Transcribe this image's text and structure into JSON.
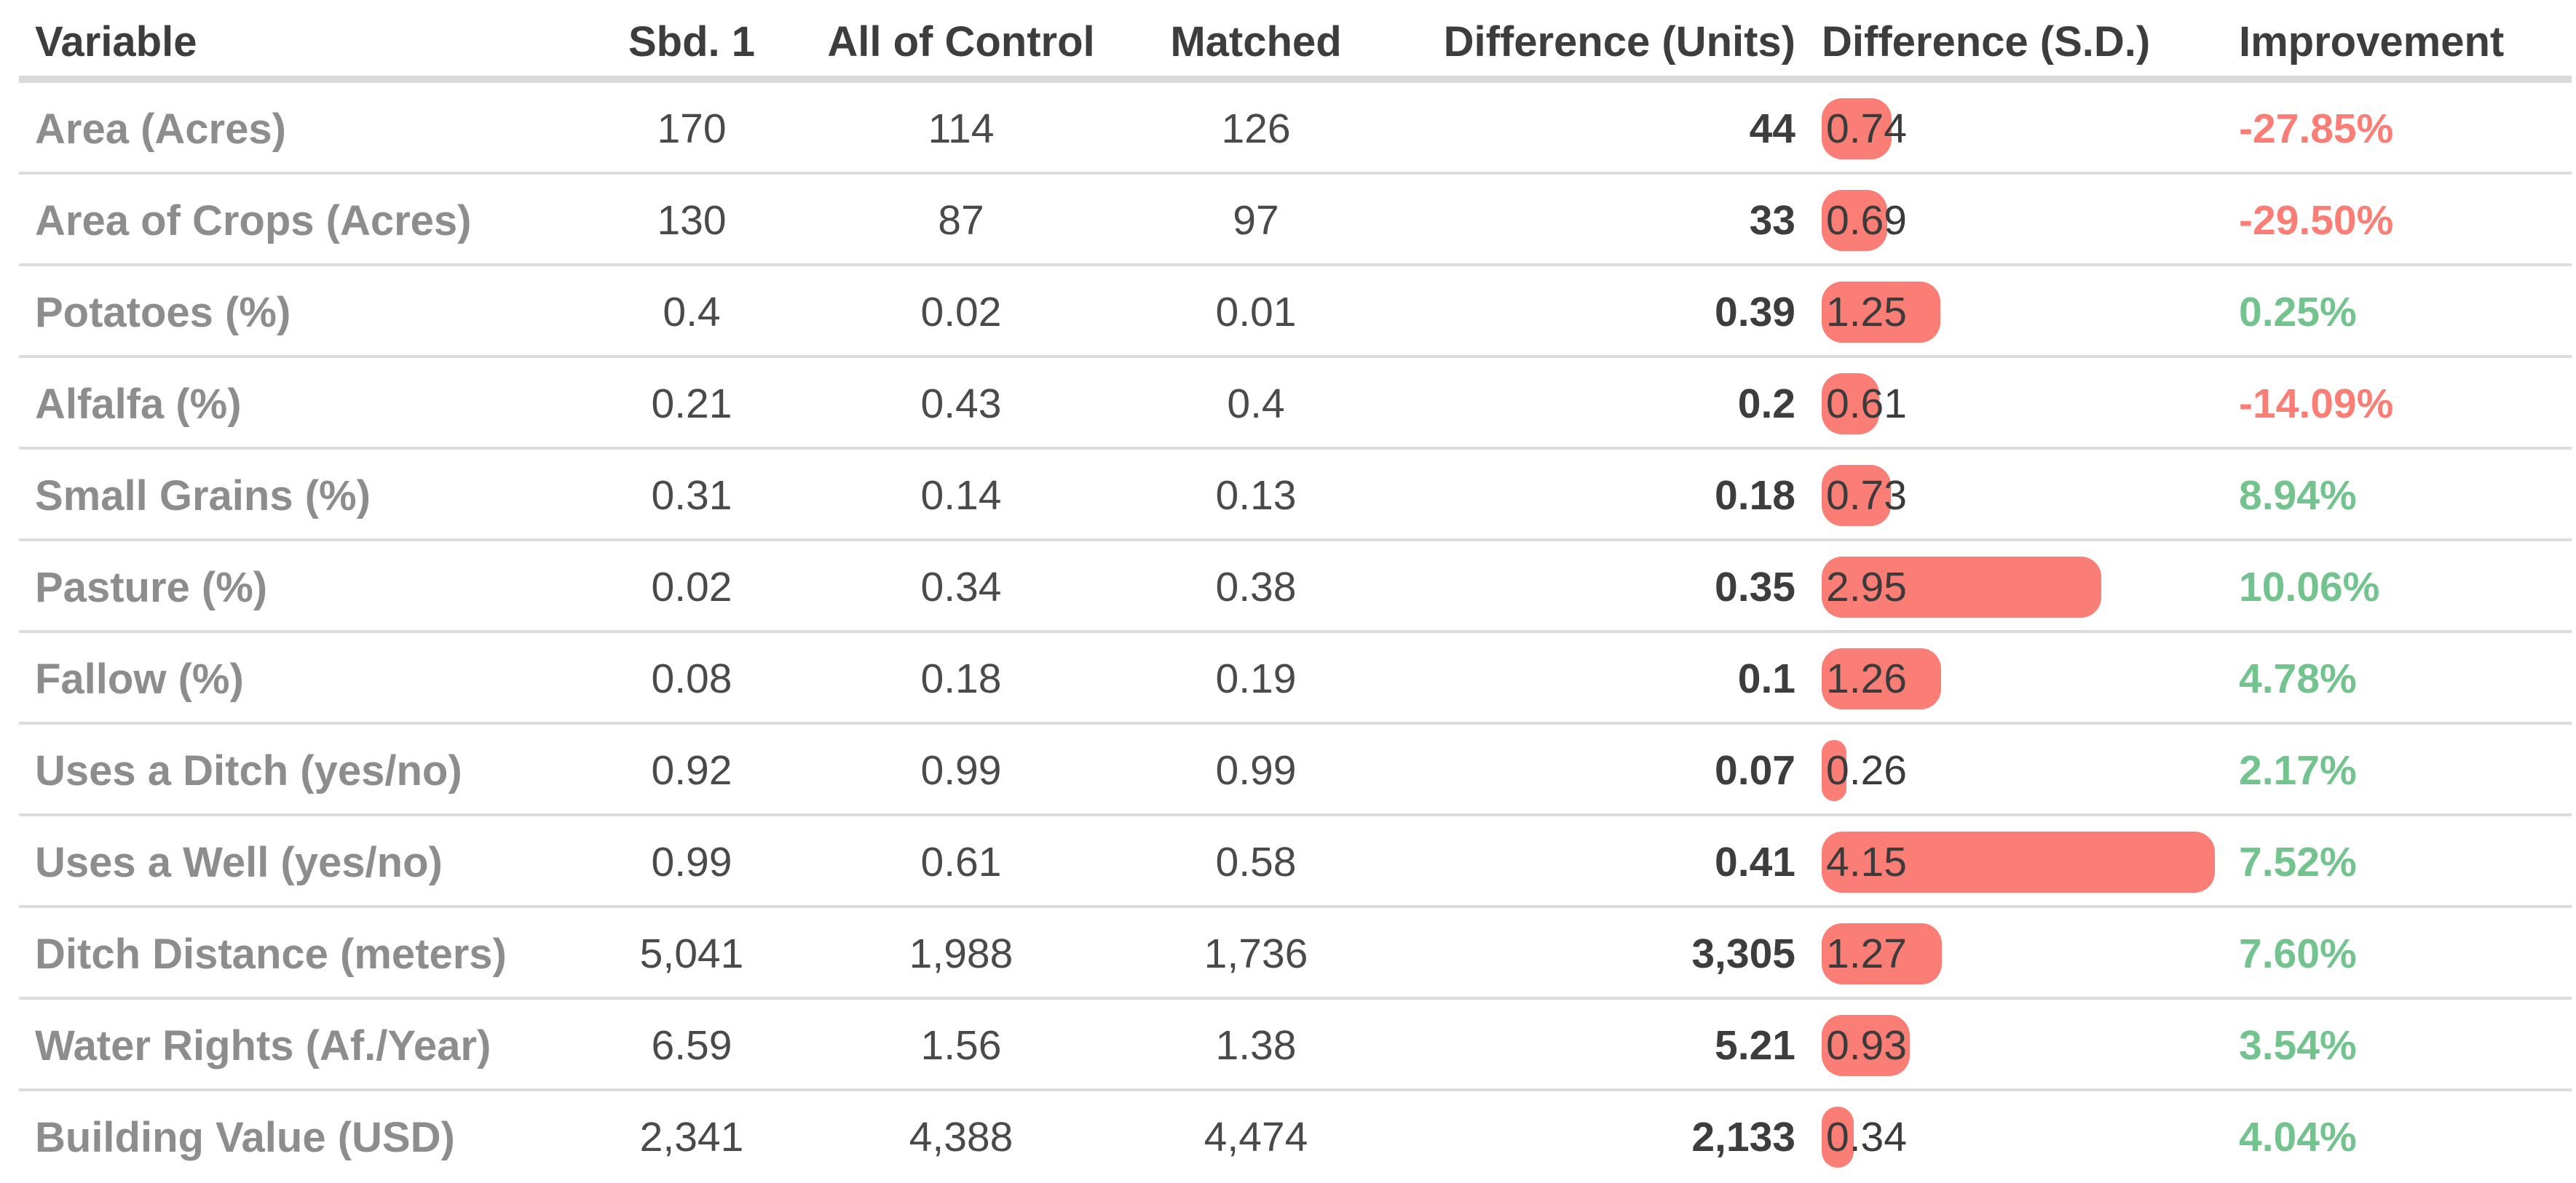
{
  "colors": {
    "bar_red": "#fa7e76",
    "negative_text": "#fa7e76",
    "positive_text": "#72c38d",
    "variable_label_gray": "#8d8d8d",
    "separator_gray": "#dcdcdc"
  },
  "chart_data": {
    "type": "table",
    "title": "",
    "columns": [
      {
        "label": "Variable"
      },
      {
        "label": "Sbd. 1"
      },
      {
        "label": "All of Control"
      },
      {
        "label": "Matched"
      },
      {
        "label": "Difference (Units)"
      },
      {
        "label": "Difference (S.D.)"
      },
      {
        "label": "Improvement"
      }
    ],
    "sd_bar_note": "Difference (S.D.) cell shows a red rounded bar whose width is proportional to the value",
    "rows": [
      {
        "variable": "Area (Acres)",
        "sbd_1": "170",
        "all_of_control": "114",
        "matched": "126",
        "difference_units": "44",
        "difference_sd": "0.74",
        "improvement": "-27.85%"
      },
      {
        "variable": "Area of Crops (Acres)",
        "sbd_1": "130",
        "all_of_control": "87",
        "matched": "97",
        "difference_units": "33",
        "difference_sd": "0.69",
        "improvement": "-29.50%"
      },
      {
        "variable": "Potatoes (%)",
        "sbd_1": "0.4",
        "all_of_control": "0.02",
        "matched": "0.01",
        "difference_units": "0.39",
        "difference_sd": "1.25",
        "improvement": "0.25%"
      },
      {
        "variable": "Alfalfa (%)",
        "sbd_1": "0.21",
        "all_of_control": "0.43",
        "matched": "0.4",
        "difference_units": "0.2",
        "difference_sd": "0.61",
        "improvement": "-14.09%"
      },
      {
        "variable": "Small Grains (%)",
        "sbd_1": "0.31",
        "all_of_control": "0.14",
        "matched": "0.13",
        "difference_units": "0.18",
        "difference_sd": "0.73",
        "improvement": "8.94%"
      },
      {
        "variable": "Pasture (%)",
        "sbd_1": "0.02",
        "all_of_control": "0.34",
        "matched": "0.38",
        "difference_units": "0.35",
        "difference_sd": "2.95",
        "improvement": "10.06%"
      },
      {
        "variable": "Fallow (%)",
        "sbd_1": "0.08",
        "all_of_control": "0.18",
        "matched": "0.19",
        "difference_units": "0.1",
        "difference_sd": "1.26",
        "improvement": "4.78%"
      },
      {
        "variable": "Uses a Ditch (yes/no)",
        "sbd_1": "0.92",
        "all_of_control": "0.99",
        "matched": "0.99",
        "difference_units": "0.07",
        "difference_sd": "0.26",
        "improvement": "2.17%"
      },
      {
        "variable": "Uses a Well (yes/no)",
        "sbd_1": "0.99",
        "all_of_control": "0.61",
        "matched": "0.58",
        "difference_units": "0.41",
        "difference_sd": "4.15",
        "improvement": "7.52%"
      },
      {
        "variable": "Ditch Distance (meters)",
        "sbd_1": "5,041",
        "all_of_control": "1,988",
        "matched": "1,736",
        "difference_units": "3,305",
        "difference_sd": "1.27",
        "improvement": "7.60%"
      },
      {
        "variable": "Water Rights (Af./Year)",
        "sbd_1": "6.59",
        "all_of_control": "1.56",
        "matched": "1.38",
        "difference_units": "5.21",
        "difference_sd": "0.93",
        "improvement": "3.54%"
      },
      {
        "variable": "Building Value (USD)",
        "sbd_1": "2,341",
        "all_of_control": "4,388",
        "matched": "4,474",
        "difference_units": "2,133",
        "difference_sd": "0.34",
        "improvement": "4.04%"
      }
    ]
  }
}
